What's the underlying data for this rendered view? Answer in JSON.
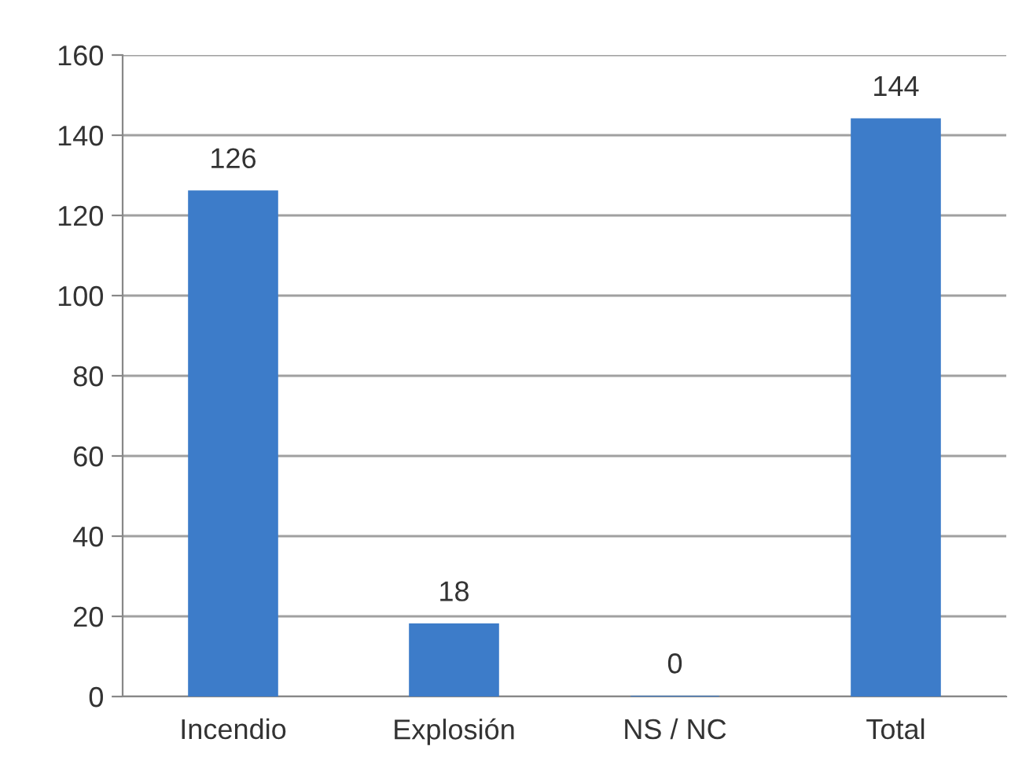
{
  "chart_data": {
    "type": "bar",
    "categories": [
      "Incendio",
      "Explosión",
      "NS / NC",
      "Total"
    ],
    "values": [
      126,
      18,
      0,
      144
    ],
    "color": "#3d7cc9",
    "ylim": [
      0,
      160
    ],
    "yticks": [
      0,
      20,
      40,
      60,
      80,
      100,
      120,
      140,
      160
    ],
    "grid": "y",
    "data_labels": true
  }
}
